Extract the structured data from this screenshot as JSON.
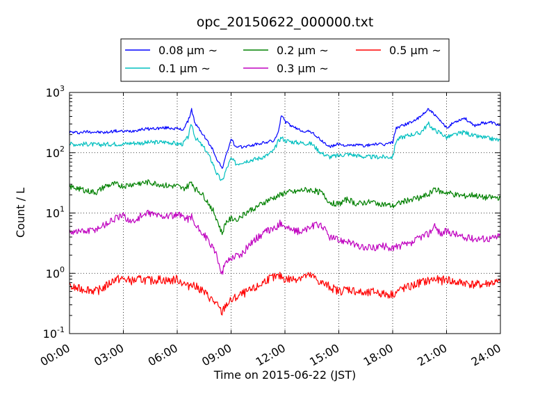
{
  "chart_data": {
    "type": "line",
    "title": "opc_20150622_000000.txt",
    "xlabel": "Time on 2015-06-22 (JST)",
    "ylabel": "Count / L",
    "x_range": [
      0,
      24
    ],
    "x_unit": "hours",
    "ylim": [
      0.1,
      1000
    ],
    "y_scale": "log",
    "grid": true,
    "legend_position": "top",
    "x_ticks": [
      "00:00",
      "03:00",
      "06:00",
      "09:00",
      "12:00",
      "15:00",
      "18:00",
      "21:00",
      "24:00"
    ],
    "y_ticks": [
      {
        "base": "10",
        "exp": "-1",
        "value": 0.1
      },
      {
        "base": "10",
        "exp": "0",
        "value": 1
      },
      {
        "base": "10",
        "exp": "1",
        "value": 10
      },
      {
        "base": "10",
        "exp": "2",
        "value": 100
      },
      {
        "base": "10",
        "exp": "3",
        "value": 1000
      }
    ],
    "series": [
      {
        "name": "0.08 µm ~",
        "color": "#0000ff",
        "x": [
          0,
          0.5,
          1,
          1.5,
          2,
          2.5,
          3,
          3.5,
          4,
          4.5,
          5,
          5.5,
          6,
          6.3,
          6.6,
          6.8,
          7,
          7.3,
          7.6,
          8,
          8.2,
          8.5,
          8.7,
          9,
          9.3,
          9.6,
          10,
          10.5,
          11,
          11.4,
          11.6,
          11.8,
          12,
          12.5,
          13,
          13.5,
          14,
          14.5,
          15,
          15.5,
          16,
          16.5,
          17,
          17.5,
          18,
          18.2,
          18.5,
          19,
          19.5,
          20,
          20.3,
          20.7,
          21,
          21.5,
          22,
          22.5,
          23,
          23.5,
          24
        ],
        "y": [
          220,
          215,
          225,
          220,
          215,
          230,
          225,
          230,
          245,
          250,
          255,
          260,
          250,
          240,
          330,
          520,
          300,
          230,
          170,
          110,
          80,
          55,
          85,
          170,
          120,
          125,
          130,
          140,
          150,
          160,
          200,
          430,
          330,
          260,
          230,
          220,
          160,
          125,
          140,
          130,
          135,
          130,
          140,
          135,
          150,
          260,
          280,
          320,
          380,
          540,
          430,
          320,
          260,
          330,
          380,
          280,
          310,
          320,
          280
        ]
      },
      {
        "name": "0.1 µm ~",
        "color": "#00bfbf",
        "x": [
          0,
          0.5,
          1,
          1.5,
          2,
          2.5,
          3,
          3.5,
          4,
          4.5,
          5,
          5.5,
          6,
          6.3,
          6.6,
          6.8,
          7,
          7.3,
          7.6,
          8,
          8.2,
          8.5,
          8.7,
          9,
          9.3,
          9.6,
          10,
          10.5,
          11,
          11.4,
          11.6,
          11.8,
          12,
          12.5,
          13,
          13.5,
          14,
          14.5,
          15,
          15.5,
          16,
          16.5,
          17,
          17.5,
          18,
          18.2,
          18.5,
          19,
          19.5,
          20,
          20.3,
          20.7,
          21,
          21.5,
          22,
          22.5,
          23,
          23.5,
          24
        ],
        "y": [
          140,
          138,
          140,
          135,
          138,
          140,
          140,
          145,
          145,
          148,
          150,
          150,
          140,
          140,
          180,
          300,
          180,
          140,
          110,
          65,
          45,
          33,
          50,
          80,
          65,
          70,
          75,
          80,
          90,
          110,
          150,
          180,
          160,
          150,
          145,
          140,
          100,
          85,
          90,
          95,
          90,
          85,
          85,
          85,
          85,
          160,
          180,
          200,
          210,
          300,
          240,
          210,
          180,
          200,
          220,
          190,
          180,
          170,
          160
        ]
      },
      {
        "name": "0.2 µm ~",
        "color": "#008000",
        "x": [
          0,
          0.5,
          1,
          1.5,
          2,
          2.5,
          3,
          3.5,
          4,
          4.5,
          5,
          5.5,
          6,
          6.3,
          6.6,
          6.8,
          7,
          7.3,
          7.6,
          8,
          8.2,
          8.5,
          8.7,
          9,
          9.3,
          9.6,
          10,
          10.5,
          11,
          11.4,
          11.8,
          12,
          12.5,
          13,
          13.5,
          14,
          14.5,
          15,
          15.5,
          16,
          16.5,
          17,
          17.5,
          18,
          18.5,
          19,
          19.5,
          20,
          20.3,
          20.7,
          21,
          21.5,
          22,
          22.5,
          23,
          23.5,
          24
        ],
        "y": [
          27,
          26,
          23,
          22,
          28,
          30,
          28,
          30,
          32,
          32,
          30,
          28,
          28,
          25,
          28,
          33,
          25,
          22,
          17,
          11,
          8,
          4.5,
          7,
          8,
          8,
          9,
          11,
          13,
          16,
          18,
          20,
          22,
          22,
          24,
          24,
          22,
          15,
          14,
          17,
          14,
          15,
          15,
          14,
          13,
          15,
          17,
          18,
          20,
          26,
          22,
          22,
          20,
          19,
          20,
          18,
          18,
          18
        ]
      },
      {
        "name": "0.3 µm ~",
        "color": "#bf00bf",
        "x": [
          0,
          0.5,
          1,
          1.5,
          2,
          2.5,
          3,
          3.5,
          4,
          4.5,
          5,
          5.5,
          6,
          6.3,
          6.6,
          6.8,
          7,
          7.3,
          7.6,
          8,
          8.2,
          8.5,
          8.7,
          9,
          9.3,
          9.6,
          10,
          10.5,
          11,
          11.4,
          11.8,
          12,
          12.5,
          13,
          13.5,
          14,
          14.5,
          15,
          15.5,
          16,
          16.5,
          17,
          17.5,
          18,
          18.5,
          19,
          19.5,
          20,
          20.3,
          20.7,
          21,
          21.5,
          22,
          22.5,
          23,
          23.5,
          24
        ],
        "y": [
          5,
          5,
          5,
          5.5,
          6.5,
          8,
          9,
          7,
          9,
          10,
          9,
          9,
          9,
          9,
          8,
          9,
          6,
          5,
          4,
          2.5,
          2,
          1,
          1.5,
          1.8,
          2,
          2,
          3,
          4,
          5,
          5.5,
          7,
          6,
          5,
          5,
          6,
          6.5,
          4,
          3.5,
          3.5,
          2.8,
          2.6,
          2.7,
          2.8,
          2.6,
          2.9,
          3,
          4,
          4.5,
          6,
          4.5,
          5,
          4.5,
          3.8,
          3.8,
          3.8,
          3.8,
          4.2
        ]
      },
      {
        "name": "0.5 µm ~",
        "color": "#ff0000",
        "x": [
          0,
          0.5,
          1,
          1.5,
          2,
          2.5,
          3,
          3.5,
          4,
          4.5,
          5,
          5.5,
          6,
          6.3,
          6.6,
          6.8,
          7,
          7.3,
          7.6,
          8,
          8.2,
          8.5,
          8.7,
          9,
          9.3,
          9.6,
          10,
          10.5,
          11,
          11.4,
          11.8,
          12,
          12.5,
          13,
          13.5,
          14,
          14.5,
          15,
          15.5,
          16,
          16.5,
          17,
          17.5,
          18,
          18.5,
          19,
          19.5,
          20,
          20.3,
          20.7,
          21,
          21.5,
          22,
          22.5,
          23,
          23.5,
          24
        ],
        "y": [
          0.6,
          0.55,
          0.55,
          0.5,
          0.6,
          0.8,
          0.8,
          0.75,
          0.8,
          0.75,
          0.8,
          0.75,
          0.8,
          0.7,
          0.6,
          0.7,
          0.6,
          0.55,
          0.45,
          0.35,
          0.3,
          0.22,
          0.3,
          0.35,
          0.4,
          0.45,
          0.5,
          0.6,
          0.8,
          0.85,
          0.9,
          0.8,
          0.8,
          0.9,
          0.9,
          0.7,
          0.6,
          0.5,
          0.55,
          0.5,
          0.45,
          0.5,
          0.45,
          0.45,
          0.55,
          0.6,
          0.7,
          0.75,
          0.8,
          0.75,
          0.8,
          0.7,
          0.7,
          0.65,
          0.65,
          0.7,
          0.7
        ]
      }
    ]
  }
}
